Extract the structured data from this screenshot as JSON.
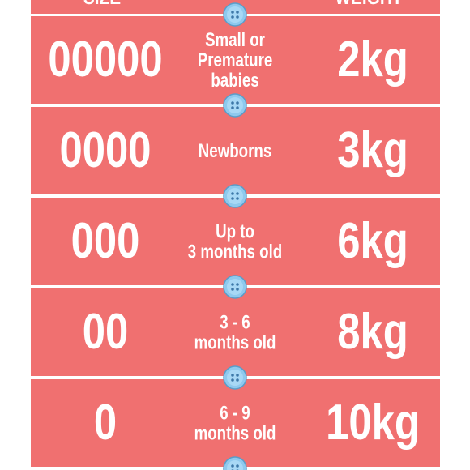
{
  "table": {
    "header": {
      "size": "SIZE",
      "weight": "WEIGHT"
    },
    "rows": [
      {
        "size": "00000",
        "age": [
          "Small or",
          "Premature",
          "babies"
        ],
        "weight": "2kg"
      },
      {
        "size": "0000",
        "age": [
          "Newborns"
        ],
        "weight": "3kg"
      },
      {
        "size": "000",
        "age": [
          "Up to",
          "3 months old"
        ],
        "weight": "6kg"
      },
      {
        "size": "00",
        "age": [
          "3 - 6",
          "months old"
        ],
        "weight": "8kg"
      },
      {
        "size": "0",
        "age": [
          "6 - 9",
          "months old"
        ],
        "weight": "10kg"
      }
    ]
  }
}
